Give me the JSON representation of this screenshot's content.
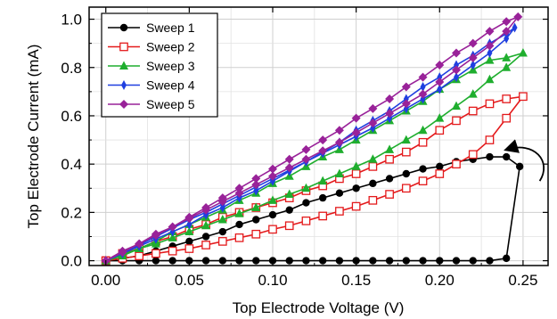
{
  "chart_data": {
    "type": "line",
    "xlabel": "Top Electrode Voltage (V)",
    "ylabel": "Top Electrode Current (mA)",
    "xlim": [
      -0.01,
      0.265
    ],
    "ylim": [
      -0.02,
      1.05
    ],
    "xticks": [
      0.0,
      0.05,
      0.1,
      0.15,
      0.2,
      0.25
    ],
    "xtick_labels": [
      "0.00",
      "0.05",
      "0.10",
      "0.15",
      "0.20",
      "0.25"
    ],
    "yticks": [
      0.0,
      0.2,
      0.4,
      0.6,
      0.8,
      1.0
    ],
    "ytick_labels": [
      "0.0",
      "0.2",
      "0.4",
      "0.6",
      "0.8",
      "1.0"
    ],
    "grid": true,
    "legend_position": "top-left",
    "annotation": "curved arrow from (0.26, 0.33) to (0.24, 0.46)",
    "series": [
      {
        "name": "Sweep 1",
        "color": "#000000",
        "marker": "filled-circle",
        "x": [
          0.0,
          0.01,
          0.02,
          0.03,
          0.04,
          0.05,
          0.06,
          0.07,
          0.08,
          0.09,
          0.1,
          0.11,
          0.12,
          0.13,
          0.14,
          0.15,
          0.16,
          0.17,
          0.18,
          0.19,
          0.2,
          0.21,
          0.22,
          0.23,
          0.24,
          0.248,
          0.24,
          0.23,
          0.22,
          0.21,
          0.2,
          0.19,
          0.18,
          0.17,
          0.16,
          0.15,
          0.14,
          0.13,
          0.12,
          0.11,
          0.1,
          0.09,
          0.08,
          0.07,
          0.06,
          0.05,
          0.04,
          0.03,
          0.02,
          0.01,
          0.0
        ],
        "y": [
          0.0,
          0.0,
          0.0,
          0.0,
          0.0,
          0.0,
          0.0,
          0.0,
          0.0,
          0.0,
          0.0,
          0.0,
          0.0,
          0.0,
          0.0,
          0.0,
          0.0,
          0.0,
          0.0,
          0.0,
          0.0,
          0.0,
          0.0,
          0.0,
          0.01,
          0.39,
          0.43,
          0.43,
          0.42,
          0.41,
          0.39,
          0.38,
          0.36,
          0.34,
          0.32,
          0.3,
          0.28,
          0.26,
          0.24,
          0.21,
          0.19,
          0.17,
          0.15,
          0.12,
          0.1,
          0.08,
          0.06,
          0.04,
          0.02,
          0.01,
          0.0
        ]
      },
      {
        "name": "Sweep 2",
        "color": "#e41a1c",
        "marker": "open-square",
        "x": [
          0.0,
          0.01,
          0.02,
          0.03,
          0.04,
          0.05,
          0.06,
          0.07,
          0.08,
          0.09,
          0.1,
          0.11,
          0.12,
          0.13,
          0.14,
          0.15,
          0.16,
          0.17,
          0.18,
          0.19,
          0.2,
          0.21,
          0.22,
          0.23,
          0.24,
          0.25,
          0.24,
          0.23,
          0.22,
          0.21,
          0.2,
          0.19,
          0.18,
          0.17,
          0.16,
          0.15,
          0.14,
          0.13,
          0.12,
          0.11,
          0.1,
          0.09,
          0.08,
          0.07,
          0.06,
          0.05,
          0.04,
          0.03,
          0.02,
          0.01,
          0.0
        ],
        "y": [
          0.0,
          0.01,
          0.02,
          0.03,
          0.04,
          0.05,
          0.065,
          0.08,
          0.095,
          0.11,
          0.13,
          0.145,
          0.165,
          0.185,
          0.205,
          0.225,
          0.25,
          0.275,
          0.3,
          0.33,
          0.36,
          0.4,
          0.44,
          0.5,
          0.59,
          0.68,
          0.67,
          0.65,
          0.62,
          0.58,
          0.54,
          0.49,
          0.45,
          0.42,
          0.39,
          0.36,
          0.34,
          0.31,
          0.29,
          0.26,
          0.24,
          0.22,
          0.2,
          0.18,
          0.15,
          0.13,
          0.1,
          0.08,
          0.05,
          0.03,
          0.0
        ]
      },
      {
        "name": "Sweep 3",
        "color": "#1fae2e",
        "marker": "filled-triangle",
        "x": [
          0.0,
          0.01,
          0.02,
          0.03,
          0.04,
          0.05,
          0.06,
          0.07,
          0.08,
          0.09,
          0.1,
          0.11,
          0.12,
          0.13,
          0.14,
          0.15,
          0.16,
          0.17,
          0.18,
          0.19,
          0.2,
          0.21,
          0.22,
          0.23,
          0.24,
          0.25,
          0.24,
          0.23,
          0.22,
          0.21,
          0.2,
          0.19,
          0.18,
          0.17,
          0.16,
          0.15,
          0.14,
          0.13,
          0.12,
          0.11,
          0.1,
          0.09,
          0.08,
          0.07,
          0.06,
          0.05,
          0.04,
          0.03,
          0.02,
          0.01,
          0.0
        ],
        "y": [
          0.0,
          0.025,
          0.05,
          0.07,
          0.095,
          0.12,
          0.145,
          0.17,
          0.195,
          0.22,
          0.25,
          0.275,
          0.3,
          0.33,
          0.36,
          0.39,
          0.42,
          0.46,
          0.5,
          0.54,
          0.59,
          0.64,
          0.69,
          0.75,
          0.8,
          0.86,
          0.84,
          0.83,
          0.79,
          0.75,
          0.71,
          0.66,
          0.62,
          0.58,
          0.54,
          0.5,
          0.46,
          0.43,
          0.39,
          0.35,
          0.32,
          0.28,
          0.25,
          0.21,
          0.18,
          0.15,
          0.12,
          0.08,
          0.05,
          0.02,
          0.0
        ]
      },
      {
        "name": "Sweep 4",
        "color": "#1f3fe0",
        "marker": "thin-diamond",
        "x": [
          0.0,
          0.01,
          0.02,
          0.03,
          0.04,
          0.05,
          0.06,
          0.07,
          0.08,
          0.09,
          0.1,
          0.11,
          0.12,
          0.13,
          0.14,
          0.15,
          0.16,
          0.17,
          0.18,
          0.19,
          0.2,
          0.21,
          0.22,
          0.23,
          0.24,
          0.245,
          0.24,
          0.23,
          0.22,
          0.21,
          0.2,
          0.19,
          0.18,
          0.17,
          0.16,
          0.15,
          0.14,
          0.13,
          0.12,
          0.11,
          0.1,
          0.09,
          0.08,
          0.07,
          0.06,
          0.05,
          0.04,
          0.03,
          0.02,
          0.01,
          0.0
        ],
        "y": [
          0.0,
          0.03,
          0.065,
          0.1,
          0.135,
          0.17,
          0.2,
          0.235,
          0.27,
          0.305,
          0.34,
          0.375,
          0.41,
          0.445,
          0.48,
          0.515,
          0.55,
          0.59,
          0.63,
          0.67,
          0.71,
          0.76,
          0.81,
          0.86,
          0.92,
          0.965,
          0.94,
          0.9,
          0.85,
          0.81,
          0.76,
          0.72,
          0.67,
          0.62,
          0.58,
          0.54,
          0.49,
          0.45,
          0.41,
          0.37,
          0.33,
          0.29,
          0.26,
          0.22,
          0.19,
          0.15,
          0.12,
          0.09,
          0.06,
          0.03,
          0.0
        ]
      },
      {
        "name": "Sweep 5",
        "color": "#992299",
        "marker": "filled-diamond",
        "x": [
          0.0,
          0.01,
          0.02,
          0.03,
          0.04,
          0.05,
          0.06,
          0.07,
          0.08,
          0.09,
          0.1,
          0.11,
          0.12,
          0.13,
          0.14,
          0.15,
          0.16,
          0.17,
          0.18,
          0.19,
          0.2,
          0.21,
          0.22,
          0.23,
          0.24,
          0.247,
          0.24,
          0.23,
          0.22,
          0.21,
          0.2,
          0.19,
          0.18,
          0.17,
          0.16,
          0.15,
          0.14,
          0.13,
          0.12,
          0.11,
          0.1,
          0.09,
          0.08,
          0.07,
          0.06,
          0.05,
          0.04,
          0.03,
          0.02,
          0.01,
          0.0
        ],
        "y": [
          0.0,
          0.035,
          0.07,
          0.105,
          0.14,
          0.175,
          0.21,
          0.245,
          0.28,
          0.315,
          0.35,
          0.385,
          0.42,
          0.455,
          0.49,
          0.53,
          0.57,
          0.61,
          0.65,
          0.69,
          0.74,
          0.79,
          0.84,
          0.89,
          0.95,
          1.01,
          0.99,
          0.95,
          0.9,
          0.86,
          0.81,
          0.76,
          0.72,
          0.67,
          0.63,
          0.59,
          0.54,
          0.5,
          0.46,
          0.42,
          0.38,
          0.34,
          0.3,
          0.26,
          0.22,
          0.18,
          0.14,
          0.11,
          0.07,
          0.04,
          0.0
        ]
      }
    ]
  }
}
